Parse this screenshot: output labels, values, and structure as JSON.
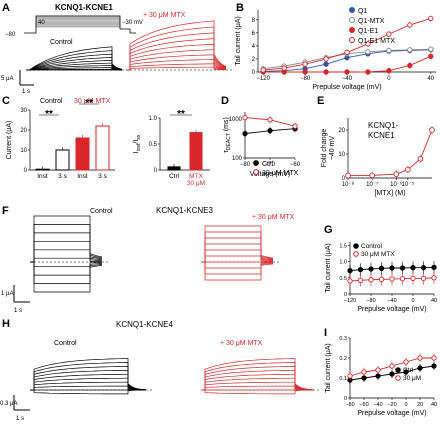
{
  "figure": {
    "panel_labels": [
      "A",
      "B",
      "C",
      "D",
      "E",
      "F",
      "G",
      "H",
      "I"
    ],
    "panel_a": {
      "title": "KCNQ1-KCNE1",
      "protocol_v_hold": "−80",
      "protocol_v_top": "40",
      "protocol_v_tail": "−30 mV",
      "control_label": "Control",
      "mtx_label": "+ 30 μM MTX",
      "scale_y": "5 μA",
      "scale_x": "1 s"
    },
    "panel_c": {
      "legend_control": "Control",
      "legend_mtx": "30 μM MTX",
      "ylabel": "Current (μA)",
      "sig": "**",
      "ylabel2": "I_inst/I_ss",
      "ylabel2_main": "I",
      "ylabel2_sub1": "inst",
      "ylabel2_sep": "/I",
      "ylabel2_sub2": "ss",
      "sig2": "**"
    },
    "panel_d": {
      "ylabel_tau": "τ",
      "ylabel_sub": "DEACT",
      "ylabel_unit": "(ms)"
    },
    "panel_e": {
      "title_line1": "KCNQ1-",
      "title_line2": "KCNE1",
      "ylabel_line1": "Fold change",
      "ylabel_line2": "−40 mV"
    },
    "panel_f": {
      "title": "KCNQ1-KCNE3",
      "control_label": "Control",
      "mtx_label": "+ 30 μM MTX",
      "scale_y": "1 μA",
      "scale_x": "1 s"
    },
    "panel_h": {
      "title": "KCNQ1-KCNE4",
      "control_label": "Control",
      "mtx_label": "+ 30 μM MTX",
      "scale_y": "0.3 μA",
      "scale_x": "1 s"
    }
  },
  "colors": {
    "control": "#000000",
    "mtx": "#d9262b",
    "q1": "#2f57a8",
    "q1_mtx": "#8a8a8a"
  },
  "chart_data": [
    {
      "id": "B",
      "type": "line",
      "xlabel": "Prepulse voltage (mV)",
      "ylabel": "Tail current (μA)",
      "x": [
        -120,
        -100,
        -80,
        -60,
        -40,
        -20,
        0,
        20,
        40
      ],
      "xticks": [
        "−120",
        "−80",
        "−40",
        "0",
        "40"
      ],
      "xtick_values": [
        -120,
        -80,
        -40,
        0,
        40
      ],
      "yticks": [
        "0",
        "2",
        "4",
        "6",
        "8"
      ],
      "ylim": [
        0,
        9.5
      ],
      "xlim": [
        -125,
        45
      ],
      "legend_position": "top-right",
      "series": [
        {
          "name": "Q1",
          "color": "#2f57a8",
          "filled": true,
          "values": [
            0.1,
            0.2,
            0.5,
            1.2,
            2.2,
            2.8,
            3.2,
            3.3,
            3.4
          ]
        },
        {
          "name": "Q1-MTX",
          "color": "#8a8a8a",
          "filled": false,
          "values": [
            0.5,
            0.9,
            1.5,
            2.2,
            2.8,
            3.1,
            3.3,
            3.4,
            3.5
          ]
        },
        {
          "name": "Q1-E1",
          "color": "#d9262b",
          "filled": true,
          "values": [
            0,
            0,
            0,
            0,
            0,
            0,
            0.2,
            1.0,
            2.4
          ]
        },
        {
          "name": "Q1-E1 MTX",
          "color": "#d9262b",
          "filled": false,
          "values": [
            0.3,
            0.6,
            1.2,
            2.0,
            3.0,
            4.3,
            5.8,
            7.2,
            8.2
          ]
        }
      ]
    },
    {
      "id": "C1",
      "type": "bar",
      "ylabel": "Current (μA)",
      "categories": [
        "Inst",
        "3 s",
        "Inst",
        "3 s"
      ],
      "values": [
        0.4,
        10,
        16,
        22
      ],
      "ylim": [
        0,
        30
      ],
      "yticks": [
        "0",
        "10",
        "20",
        "30"
      ]
    },
    {
      "id": "C2",
      "type": "bar",
      "ylabel": "I_inst/I_ss",
      "categories": [
        "Ctrl",
        "MTX"
      ],
      "category_line2": [
        "",
        "30 μM"
      ],
      "values": [
        0.06,
        0.72
      ],
      "ylim": [
        0,
        1.0
      ],
      "yticks": [
        "0",
        "0.5",
        "1.0"
      ]
    },
    {
      "id": "D",
      "type": "line",
      "xlabel": "Voltage (mV)",
      "ylabel": "τ DEACT (ms)",
      "x": [
        -80,
        -70,
        -60
      ],
      "xticks": [
        "−80",
        "−70",
        "−60"
      ],
      "ytick_labels": [
        "100",
        "1000"
      ],
      "ylim": [
        100,
        1500
      ],
      "log_y": true,
      "legend_position": "bottom",
      "series": [
        {
          "name": "Ctrl",
          "color": "#000000",
          "filled": true,
          "values": [
            420,
            500,
            560
          ]
        },
        {
          "name": "30 μM MTX",
          "color": "#d9262b",
          "filled": false,
          "values": [
            1080,
            950,
            650
          ]
        }
      ]
    },
    {
      "id": "E",
      "type": "line",
      "xlabel": "[MTX] (M)",
      "ylabel": "Fold change −40 mV",
      "x": [
        1e-08,
        1e-07,
        1e-06,
        3e-06,
        1e-05,
        3e-05
      ],
      "xticks": [
        "10⁻⁸",
        "10⁻⁷",
        "10⁻⁶",
        "10⁻⁵"
      ],
      "yticks": [
        "0",
        "10",
        "20"
      ],
      "log_x": true,
      "ylim": [
        0,
        25
      ],
      "series": [
        {
          "name": "",
          "color": "#d9262b",
          "filled": false,
          "values": [
            1,
            1.1,
            1.6,
            3.5,
            8,
            20
          ]
        }
      ]
    },
    {
      "id": "G",
      "type": "line",
      "xlabel": "Prepulse voltage (mV)",
      "ylabel": "Tail current (μA)",
      "x": [
        -120,
        -100,
        -80,
        -60,
        -40,
        -20,
        0,
        20,
        40
      ],
      "xticks": [
        "−120",
        "−80",
        "−40",
        "0",
        "40"
      ],
      "xtick_values": [
        -120,
        -80,
        -40,
        0,
        40
      ],
      "yticks": [
        "0",
        "0.5",
        "1.0",
        "1.5"
      ],
      "ylim": [
        0,
        1.6
      ],
      "legend_position": "top-left",
      "series": [
        {
          "name": "Control",
          "color": "#000000",
          "filled": true,
          "values": [
            0.72,
            0.75,
            0.77,
            0.79,
            0.8,
            0.8,
            0.81,
            0.81,
            0.82
          ]
        },
        {
          "name": "30 μM MTX",
          "color": "#d9262b",
          "filled": false,
          "values": [
            0.4,
            0.42,
            0.44,
            0.45,
            0.46,
            0.47,
            0.48,
            0.48,
            0.5
          ]
        }
      ]
    },
    {
      "id": "I",
      "type": "line",
      "xlabel": "Prepulse voltage (mV)",
      "ylabel": "Tail current (μA)",
      "x": [
        -80,
        -60,
        -40,
        -20,
        0,
        20,
        40
      ],
      "xticks": [
        "−80",
        "−60",
        "−40",
        "−20",
        "0",
        "20",
        "40"
      ],
      "yticks": [
        "0",
        "0.1",
        "0.2",
        "0.3"
      ],
      "ylim": [
        0,
        0.3
      ],
      "legend_position": "bottom-right",
      "series": [
        {
          "name": "Ctrl",
          "color": "#000000",
          "filled": true,
          "values": [
            0.09,
            0.1,
            0.11,
            0.12,
            0.13,
            0.15,
            0.16
          ]
        },
        {
          "name": "30 μM",
          "color": "#d9262b",
          "filled": false,
          "values": [
            0.11,
            0.13,
            0.14,
            0.16,
            0.18,
            0.2,
            0.2
          ]
        }
      ]
    }
  ]
}
